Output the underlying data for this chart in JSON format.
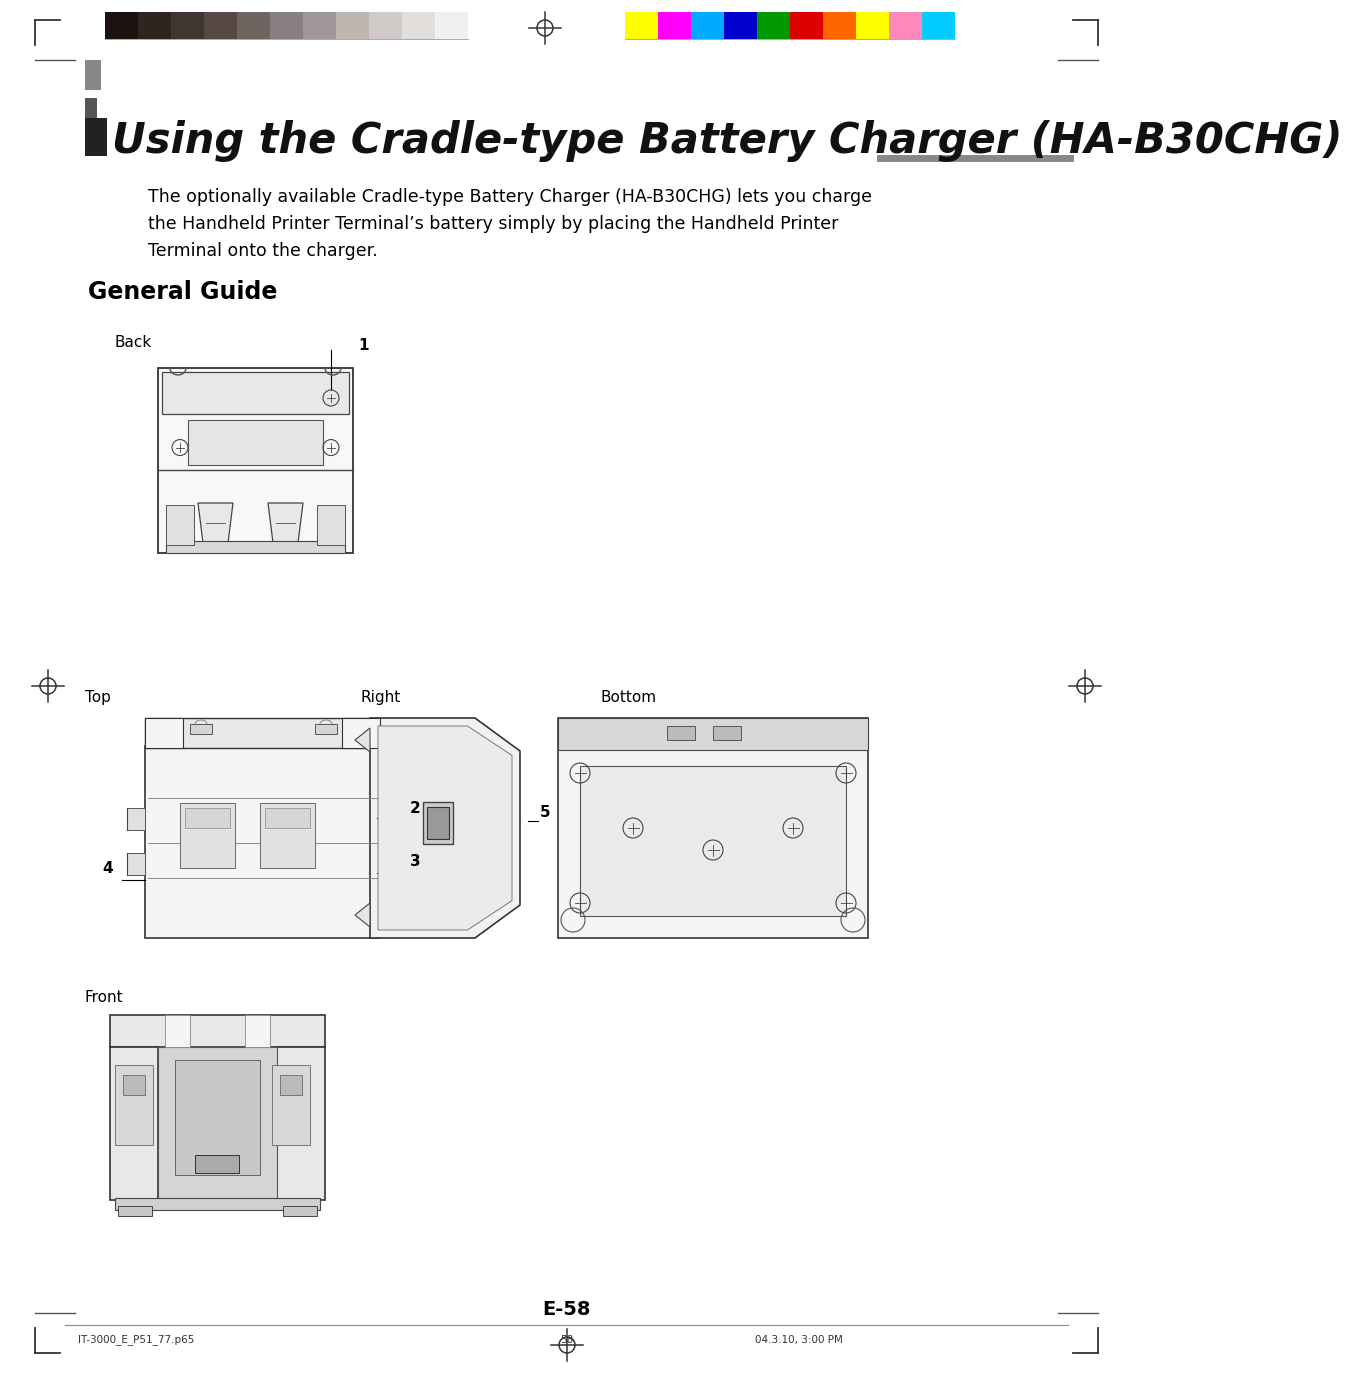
{
  "page_bg": "#ffffff",
  "title_text": "Using the Cradle-type Battery Charger (HA-B30CHG)",
  "body_text": "The optionally available Cradle-type Battery Charger (HA-B30CHG) lets you charge\nthe Handheld Printer Terminal’s battery simply by placing the Handheld Printer\nTerminal onto the charger.",
  "section_title": "General Guide",
  "label_back": "Back",
  "label_top": "Top",
  "label_right": "Right",
  "label_bottom": "Bottom",
  "label_front": "Front",
  "page_num": "E-58",
  "footer_left": "IT-3000_E_P51_77.p65",
  "footer_center": "58",
  "footer_right": "04.3.10, 3:00 PM",
  "gray_colors": [
    "#1c1210",
    "#2e2420",
    "#403530",
    "#564845",
    "#6e6460",
    "#888080",
    "#a09898",
    "#bcb5b0",
    "#d0cbc8",
    "#e2dedc",
    "#f2f0ef"
  ],
  "color_squares": [
    "#ffff00",
    "#ff00ff",
    "#00aaff",
    "#0000cc",
    "#009900",
    "#dd0000",
    "#ff6600",
    "#ffff00",
    "#ff88bb",
    "#00ccff"
  ]
}
